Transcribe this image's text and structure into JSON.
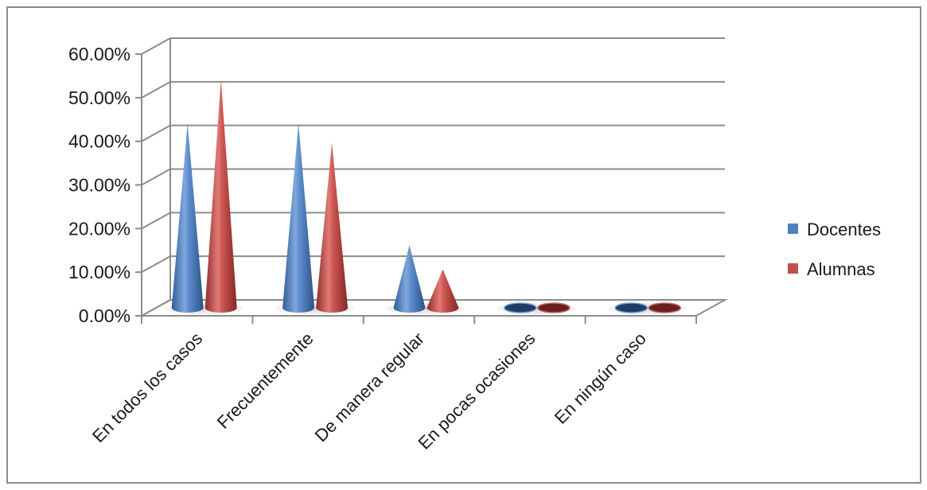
{
  "chart_data": {
    "type": "bar",
    "subtype": "3d-cone",
    "categories": [
      "En todos los casos",
      "Frecuentemente",
      "De manera regular",
      "En pocas ocasiones",
      "En ningún caso"
    ],
    "series": [
      {
        "name": "Docentes",
        "values": [
          42.0,
          42.0,
          14.0,
          0.0,
          0.0
        ],
        "color": "#4f81bd"
      },
      {
        "name": "Alumnas",
        "values": [
          52.0,
          37.5,
          8.5,
          0.0,
          0.0
        ],
        "color": "#c0504d"
      }
    ],
    "y_ticks": [
      "0.00%",
      "10.00%",
      "20.00%",
      "30.00%",
      "40.00%",
      "50.00%",
      "60.00%"
    ],
    "ylim": [
      0,
      60
    ],
    "grid": true,
    "legend_position": "right"
  }
}
